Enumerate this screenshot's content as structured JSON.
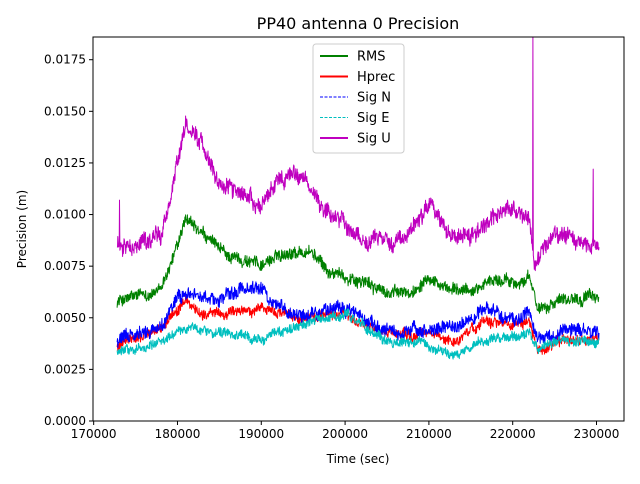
{
  "chart_data": {
    "type": "line",
    "title": "PP40 antenna 0 Precision",
    "xlabel": "Time (sec)",
    "ylabel": "Precision (m)",
    "xlim": [
      169920,
      233280
    ],
    "ylim": [
      0,
      0.0186
    ],
    "xticks": [
      170000,
      180000,
      190000,
      200000,
      210000,
      220000,
      230000
    ],
    "xtick_labels": [
      "170000",
      "180000",
      "190000",
      "200000",
      "210000",
      "220000",
      "230000"
    ],
    "yticks": [
      0,
      0.0025,
      0.005,
      0.0075,
      0.01,
      0.0125,
      0.015,
      0.0175
    ],
    "ytick_labels": [
      "0.0000",
      "0.0025",
      "0.0050",
      "0.0075",
      "0.0100",
      "0.0125",
      "0.0150",
      "0.0175"
    ],
    "grid": false,
    "legend_position": "top-center",
    "series": [
      {
        "name": "RMS",
        "color": "#008000",
        "style": "solid",
        "noise": 0.00025,
        "points": [
          [
            172800,
            0.0058
          ],
          [
            178000,
            0.0063
          ],
          [
            180000,
            0.0085
          ],
          [
            181000,
            0.0097
          ],
          [
            183000,
            0.009
          ],
          [
            186000,
            0.008
          ],
          [
            190000,
            0.0076
          ],
          [
            193000,
            0.0082
          ],
          [
            196000,
            0.0082
          ],
          [
            198000,
            0.0072
          ],
          [
            202000,
            0.0068
          ],
          [
            205000,
            0.0062
          ],
          [
            208000,
            0.0062
          ],
          [
            210000,
            0.0072
          ],
          [
            212000,
            0.0063
          ],
          [
            215000,
            0.0063
          ],
          [
            217000,
            0.0068
          ],
          [
            222000,
            0.0068
          ],
          [
            223000,
            0.0055
          ],
          [
            226000,
            0.006
          ],
          [
            230300,
            0.006
          ]
        ]
      },
      {
        "name": "Hprec",
        "color": "#ff0000",
        "style": "solid",
        "noise": 0.00022,
        "points": [
          [
            172800,
            0.0036
          ],
          [
            178000,
            0.0045
          ],
          [
            181000,
            0.0058
          ],
          [
            183000,
            0.0052
          ],
          [
            186000,
            0.0052
          ],
          [
            190000,
            0.0055
          ],
          [
            192000,
            0.0053
          ],
          [
            194000,
            0.005
          ],
          [
            200000,
            0.0052
          ],
          [
            203000,
            0.0045
          ],
          [
            208000,
            0.0041
          ],
          [
            210000,
            0.0043
          ],
          [
            213000,
            0.0038
          ],
          [
            215000,
            0.0044
          ],
          [
            217000,
            0.005
          ],
          [
            219000,
            0.0047
          ],
          [
            222000,
            0.0048
          ],
          [
            223000,
            0.0034
          ],
          [
            226000,
            0.0039
          ],
          [
            230300,
            0.004
          ]
        ]
      },
      {
        "name": "Sig N",
        "color": "#0000ff",
        "style": "dashed",
        "noise": 0.00028,
        "points": [
          [
            172800,
            0.0038
          ],
          [
            178000,
            0.0045
          ],
          [
            180000,
            0.006
          ],
          [
            182000,
            0.0062
          ],
          [
            185000,
            0.0058
          ],
          [
            188000,
            0.0065
          ],
          [
            190000,
            0.0065
          ],
          [
            192000,
            0.0055
          ],
          [
            195000,
            0.0052
          ],
          [
            200000,
            0.0055
          ],
          [
            203000,
            0.0048
          ],
          [
            206000,
            0.0043
          ],
          [
            209000,
            0.0042
          ],
          [
            211000,
            0.0045
          ],
          [
            213000,
            0.0045
          ],
          [
            215000,
            0.005
          ],
          [
            217000,
            0.0055
          ],
          [
            220000,
            0.0048
          ],
          [
            222000,
            0.0052
          ],
          [
            223000,
            0.004
          ],
          [
            226000,
            0.0043
          ],
          [
            230300,
            0.0042
          ]
        ]
      },
      {
        "name": "Sig E",
        "color": "#00bfbf",
        "style": "dashed",
        "noise": 0.0002,
        "points": [
          [
            172800,
            0.0033
          ],
          [
            176000,
            0.0036
          ],
          [
            180000,
            0.0043
          ],
          [
            182000,
            0.0045
          ],
          [
            185000,
            0.0042
          ],
          [
            190000,
            0.0041
          ],
          [
            194000,
            0.0045
          ],
          [
            200000,
            0.0052
          ],
          [
            202000,
            0.0047
          ],
          [
            205000,
            0.0038
          ],
          [
            209000,
            0.0037
          ],
          [
            213000,
            0.0032
          ],
          [
            216000,
            0.0038
          ],
          [
            220000,
            0.004
          ],
          [
            222000,
            0.0043
          ],
          [
            223000,
            0.0035
          ],
          [
            226000,
            0.0039
          ],
          [
            230300,
            0.0038
          ]
        ]
      },
      {
        "name": "Sig U",
        "color": "#bf00bf",
        "style": "solid",
        "noise": 0.00035,
        "points": [
          [
            172800,
            0.0085
          ],
          [
            175000,
            0.0085
          ],
          [
            178000,
            0.009
          ],
          [
            180000,
            0.0125
          ],
          [
            181000,
            0.0145
          ],
          [
            183000,
            0.0135
          ],
          [
            185000,
            0.0115
          ],
          [
            188000,
            0.011
          ],
          [
            190000,
            0.0105
          ],
          [
            192000,
            0.0115
          ],
          [
            194000,
            0.012
          ],
          [
            196000,
            0.0115
          ],
          [
            197000,
            0.0105
          ],
          [
            200000,
            0.0095
          ],
          [
            203000,
            0.0088
          ],
          [
            206000,
            0.0088
          ],
          [
            208000,
            0.0095
          ],
          [
            210000,
            0.0105
          ],
          [
            212000,
            0.0093
          ],
          [
            215000,
            0.009
          ],
          [
            217000,
            0.0095
          ],
          [
            219000,
            0.0103
          ],
          [
            222000,
            0.0098
          ],
          [
            222500,
            0.0075
          ],
          [
            224000,
            0.0085
          ],
          [
            226000,
            0.009
          ],
          [
            228000,
            0.0085
          ],
          [
            230300,
            0.0085
          ]
        ],
        "spikes": [
          [
            173100,
            0.0107
          ],
          [
            222400,
            0.0186
          ],
          [
            229600,
            0.0122
          ]
        ]
      }
    ]
  }
}
